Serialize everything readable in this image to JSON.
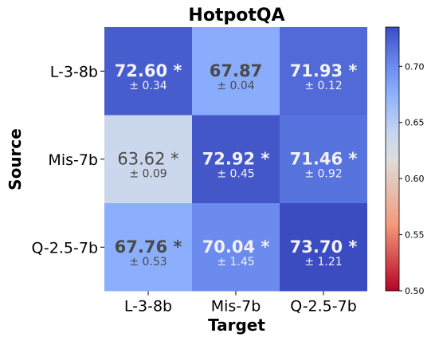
{
  "chart_data": {
    "type": "heatmap",
    "title": "HotpotQA",
    "xlabel": "Target",
    "ylabel": "Source",
    "x_categories": [
      "L-3-8b",
      "Mis-7b",
      "Q-2.5-7b"
    ],
    "y_categories": [
      "L-3-8b",
      "Mis-7b",
      "Q-2.5-7b"
    ],
    "cells": [
      [
        {
          "value": 72.6,
          "value_label": "72.60 *",
          "std_label": "± 0.34",
          "bold": true,
          "light_text": true
        },
        {
          "value": 67.87,
          "value_label": "67.87",
          "std_label": "± 0.04",
          "bold": true,
          "light_text": false
        },
        {
          "value": 71.93,
          "value_label": "71.93 *",
          "std_label": "± 0.12",
          "bold": true,
          "light_text": true
        }
      ],
      [
        {
          "value": 63.62,
          "value_label": "63.62 *",
          "std_label": "± 0.09",
          "bold": false,
          "light_text": false
        },
        {
          "value": 72.92,
          "value_label": "72.92 *",
          "std_label": "± 0.45",
          "bold": true,
          "light_text": true
        },
        {
          "value": 71.46,
          "value_label": "71.46 *",
          "std_label": "± 0.92",
          "bold": true,
          "light_text": true
        }
      ],
      [
        {
          "value": 67.76,
          "value_label": "67.76 *",
          "std_label": "± 0.53",
          "bold": true,
          "light_text": false
        },
        {
          "value": 70.04,
          "value_label": "70.04 *",
          "std_label": "± 1.45",
          "bold": true,
          "light_text": true
        },
        {
          "value": 73.7,
          "value_label": "73.70 *",
          "std_label": "± 1.21",
          "bold": true,
          "light_text": true
        }
      ]
    ],
    "colorbar": {
      "colormap": "coolwarm",
      "range": [
        0.5,
        0.735
      ],
      "ticks": [
        0.5,
        0.55,
        0.6,
        0.65,
        0.7
      ],
      "tick_labels": [
        "0.50",
        "0.55",
        "0.60",
        "0.65",
        "0.70"
      ]
    },
    "colors": {
      "low": "#b40426",
      "mid": "#dddddd",
      "high": "#3b4cc0",
      "text_dark": "#4a4a4a",
      "text_light": "#f2f2f2"
    }
  }
}
